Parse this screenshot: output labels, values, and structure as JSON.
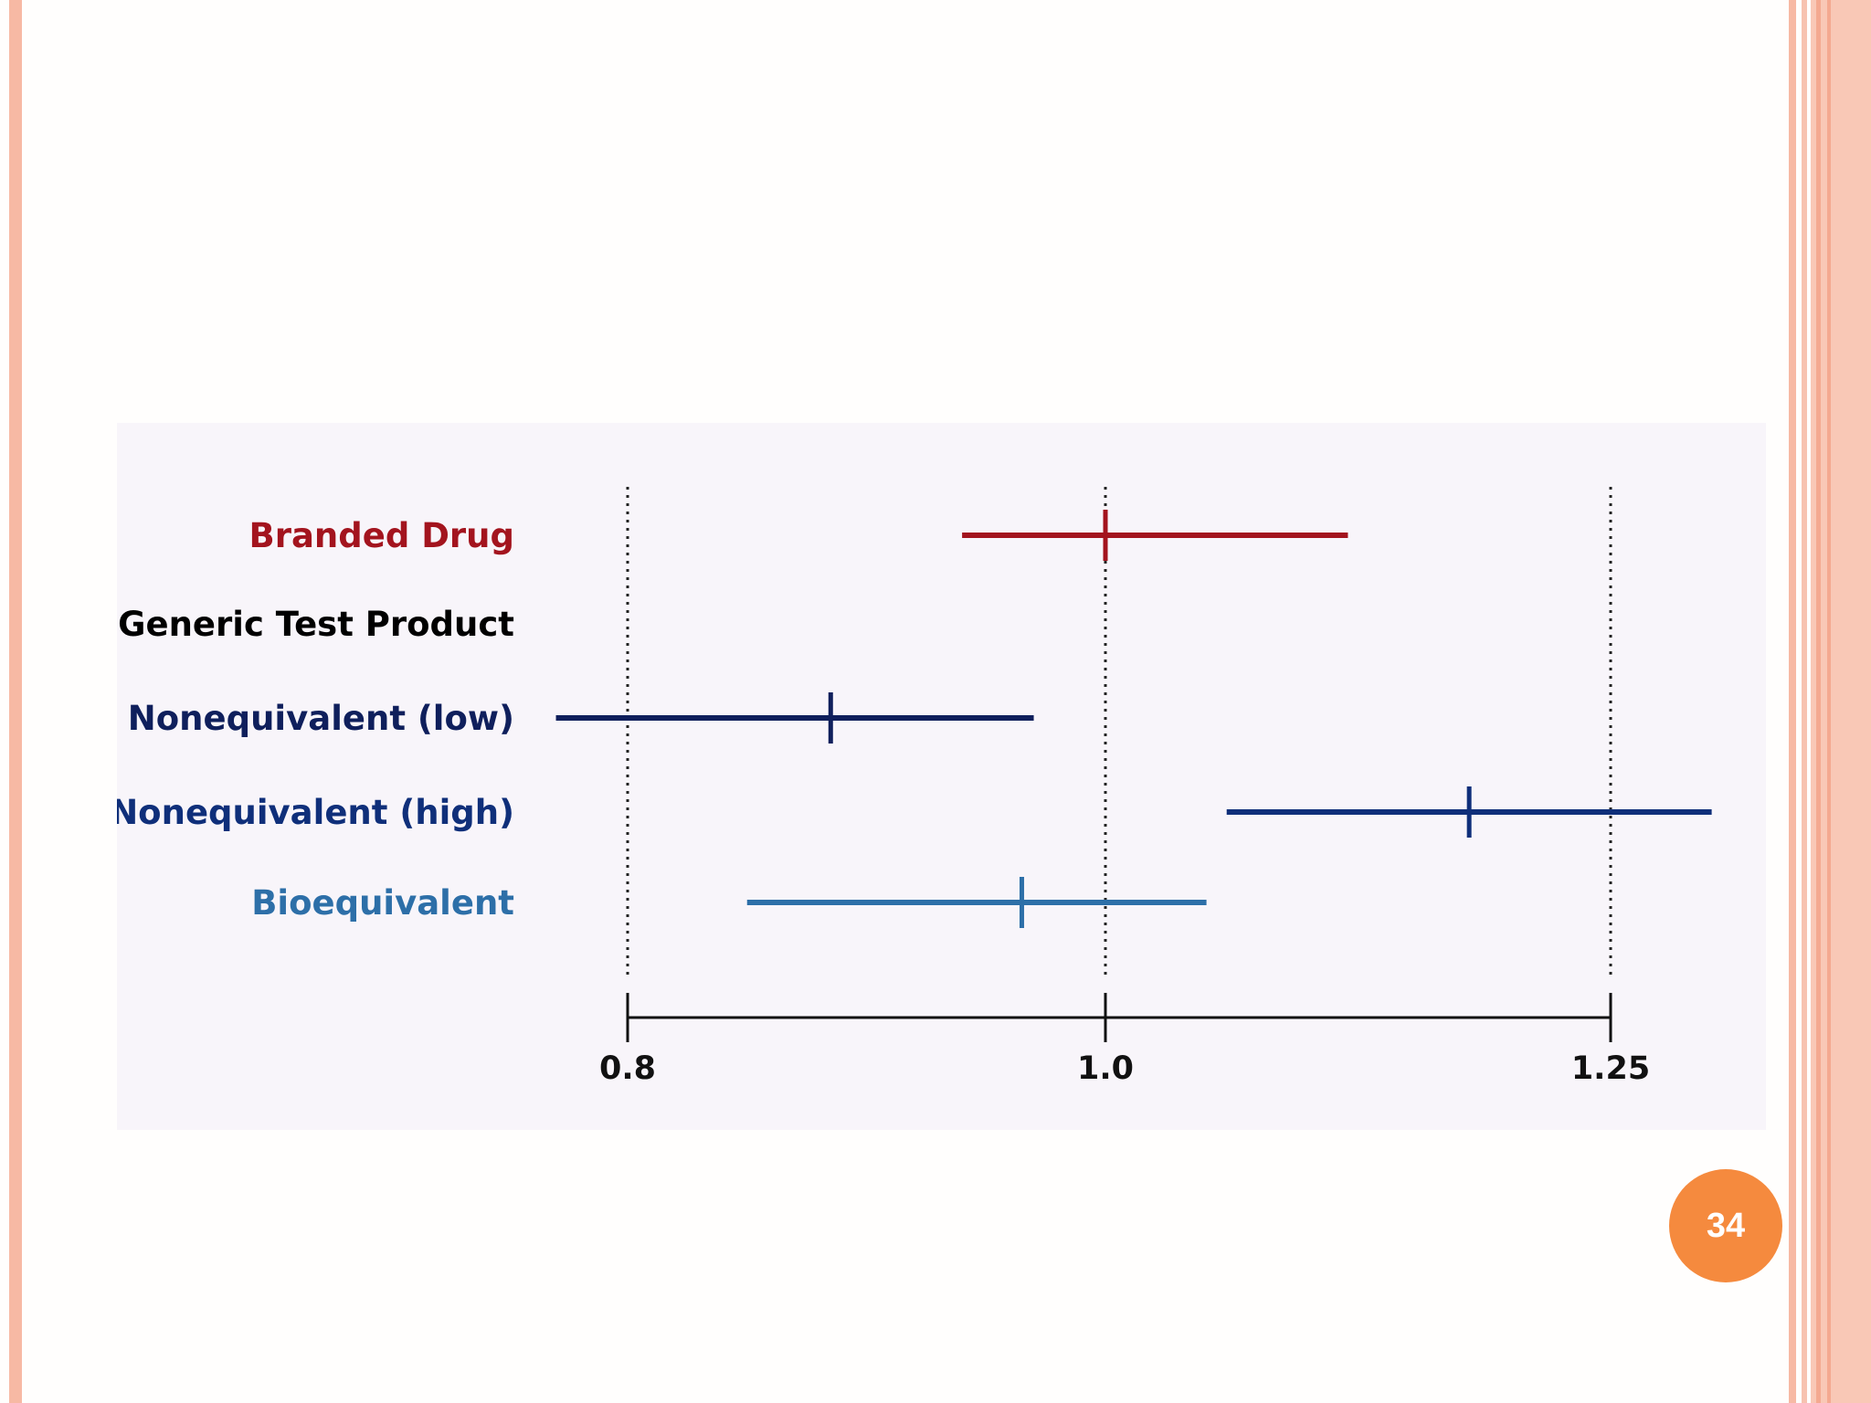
{
  "slide": {
    "page_number": "34",
    "colors": {
      "border": "#f7b9a4",
      "badge": "#f58a3e",
      "chart_background": "#f8f5fa"
    }
  },
  "chart_data": {
    "type": "interval",
    "title": "",
    "xlabel": "",
    "ylabel": "",
    "x_ticks": [
      {
        "value": 0.8,
        "label": "0.8"
      },
      {
        "value": 1.0,
        "label": "1.0"
      },
      {
        "value": 1.25,
        "label": "1.25"
      }
    ],
    "reference_lines": [
      0.8,
      1.0,
      1.25
    ],
    "rows": [
      {
        "label": "Branded Drug",
        "color": "#a3141e",
        "low": 0.94,
        "point": 1.0,
        "high": 1.12
      },
      {
        "label": "Generic Test Product",
        "color": "#000000",
        "low": null,
        "point": null,
        "high": null
      },
      {
        "label": "Nonequivalent (low)",
        "color": "#0f1f5c",
        "low": 0.77,
        "point": 0.885,
        "high": 0.97
      },
      {
        "label": "Nonequivalent (high)",
        "color": "#0f2f7a",
        "low": 1.06,
        "point": 1.18,
        "high": 1.3
      },
      {
        "label": "Bioequivalent",
        "color": "#2d6fa8",
        "low": 0.85,
        "point": 0.965,
        "high": 1.05
      }
    ]
  }
}
